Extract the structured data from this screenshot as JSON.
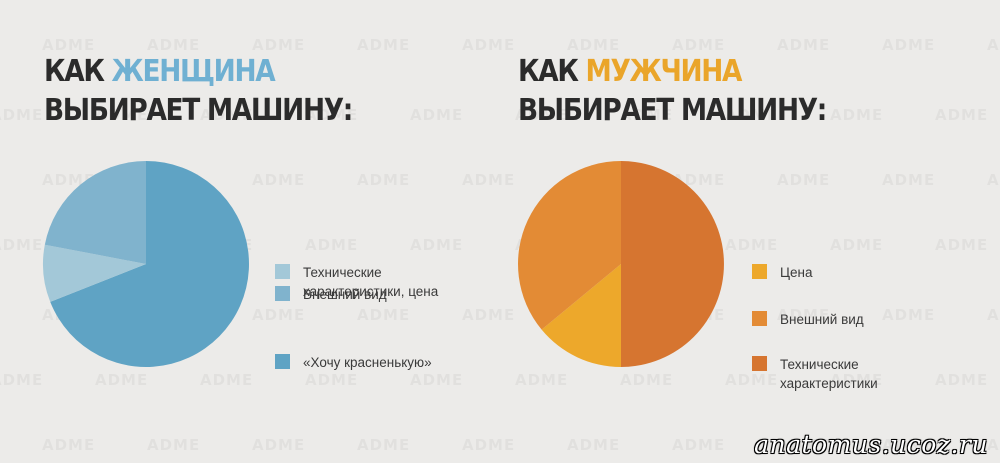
{
  "watermark_text": "ADME",
  "credit": "anatomus.ucoz.ru",
  "chart_data": [
    {
      "type": "pie",
      "title_prefix": "КАК",
      "title_highlight": "ЖЕНЩИНА",
      "title_line2": "ВЫБИРАЕТ МАШИНУ:",
      "highlight_color": "#6fb0d2",
      "slices": [
        {
          "label": "Технические\nхарактеристики, цена",
          "value": 9,
          "color": "#a3c8d8"
        },
        {
          "label": "Внешний вид",
          "value": 22,
          "color": "#80b3cd"
        },
        {
          "label": "«Хочу красненькую»",
          "value": 69,
          "color": "#5fa3c4"
        }
      ]
    },
    {
      "type": "pie",
      "title_prefix": "КАК",
      "title_highlight": "МУЖЧИНА",
      "title_line2": "ВЫБИРАЕТ МАШИНУ:",
      "highlight_color": "#eaa52a",
      "slices": [
        {
          "label": "Цена",
          "value": 14,
          "color": "#eda82b"
        },
        {
          "label": "Внешний вид",
          "value": 36,
          "color": "#e38b35"
        },
        {
          "label": "Технические\nхарактеристики",
          "value": 50,
          "color": "#d67530"
        }
      ]
    }
  ]
}
